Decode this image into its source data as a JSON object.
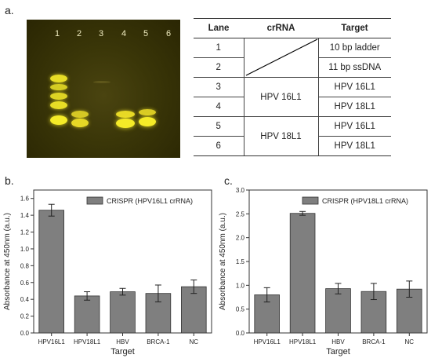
{
  "panels": {
    "a": "a.",
    "b": "b.",
    "c": "c."
  },
  "gel": {
    "lane_numbers": [
      "1",
      "2",
      "3",
      "4",
      "5",
      "6"
    ],
    "band_color": "#e8e020",
    "background_color": "#2e2a05"
  },
  "table": {
    "headers": [
      "Lane",
      "crRNA",
      "Target"
    ],
    "rows": [
      {
        "lane": "1",
        "target": "10 bp ladder"
      },
      {
        "lane": "2",
        "target": "11 bp ssDNA"
      },
      {
        "lane": "3",
        "target": "HPV 16L1"
      },
      {
        "lane": "4",
        "target": "HPV 18L1"
      },
      {
        "lane": "5",
        "target": "HPV 16L1"
      },
      {
        "lane": "6",
        "target": "HPV 18L1"
      }
    ],
    "crrna_groups": [
      "HPV 16L1",
      "HPV 18L1"
    ]
  },
  "chart_data": [
    {
      "type": "bar",
      "panel": "b.",
      "categories": [
        "HPV16L1",
        "HPV18L1",
        "HBV",
        "BRCA-1",
        "NC"
      ],
      "values": [
        1.46,
        0.44,
        0.49,
        0.47,
        0.55
      ],
      "errors": [
        0.07,
        0.05,
        0.04,
        0.1,
        0.08
      ],
      "legend": "CRISPR (HPV16L1 crRNA)",
      "xlabel": "Target",
      "ylabel": "Absorbance at 450nm (a.u.)",
      "ylim": [
        0,
        1.7
      ],
      "yticks": [
        "0.0",
        "0.2",
        "0.4",
        "0.6",
        "0.8",
        "1.0",
        "1.2",
        "1.4",
        "1.6"
      ],
      "bar_color": "#7f7f7f"
    },
    {
      "type": "bar",
      "panel": "c.",
      "categories": [
        "HPV16L1",
        "HPV18L1",
        "HBV",
        "BRCA-1",
        "NC"
      ],
      "values": [
        0.8,
        2.51,
        0.93,
        0.87,
        0.92
      ],
      "errors": [
        0.15,
        0.04,
        0.11,
        0.17,
        0.17
      ],
      "legend": "CRISPR (HPV18L1 crRNA)",
      "xlabel": "Target",
      "ylabel": "Absorbance at 450nm (a.u.)",
      "ylim": [
        0,
        3.0
      ],
      "yticks": [
        "0.0",
        "0.5",
        "1.0",
        "1.5",
        "2.0",
        "2.5",
        "3.0"
      ],
      "bar_color": "#7f7f7f"
    }
  ]
}
